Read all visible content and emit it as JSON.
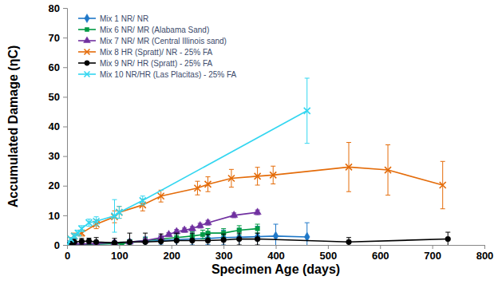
{
  "chart_data": {
    "type": "line",
    "x_label": "Specimen Age (days)",
    "y_label": "Accumulated Damage (ηC)",
    "xlim": [
      0,
      800
    ],
    "ylim": [
      0,
      80
    ],
    "xticks": [
      0,
      100,
      200,
      300,
      400,
      500,
      600,
      700,
      800
    ],
    "yticks": [
      0,
      10,
      20,
      30,
      40,
      50,
      60,
      70,
      80
    ],
    "grid": false,
    "legend": "upper left",
    "series": [
      {
        "name": "Mix 1 NR/ NR",
        "color": "#1F78C8",
        "marker": "diamond",
        "line_style": "solid",
        "x": [
          0,
          7,
          14,
          28,
          56,
          91,
          120,
          150,
          180,
          210,
          240,
          270,
          300,
          330,
          365,
          400,
          460
        ],
        "values": [
          0,
          0.3,
          0.5,
          0.2,
          0.3,
          0.5,
          0.8,
          1.2,
          1.5,
          1.8,
          2.0,
          2.2,
          2.5,
          2.6,
          2.8,
          3.0,
          2.7
        ],
        "errors": [
          0,
          0.3,
          0.5,
          0.5,
          0.5,
          0.8,
          1,
          1.5,
          1.5,
          2,
          2,
          2,
          2.5,
          3,
          3.5,
          4,
          4.8
        ]
      },
      {
        "name": "Mix 6 NR/ MR (Alabama Sand)",
        "color": "#009A44",
        "marker": "square",
        "line_style": "solid",
        "x": [
          0,
          7,
          14,
          28,
          56,
          91,
          105,
          120,
          150,
          180,
          210,
          240,
          260,
          270,
          300,
          330,
          365
        ],
        "values": [
          0,
          0.2,
          0.3,
          0.2,
          0.3,
          0.5,
          0.3,
          1,
          1.5,
          2,
          2.5,
          3,
          3.5,
          4,
          4,
          5,
          5.5
        ],
        "errors": [
          0,
          0.2,
          0.3,
          0.3,
          0.4,
          0.5,
          0.5,
          0.8,
          1,
          1,
          1.2,
          1.5,
          1.5,
          1.5,
          1.5,
          1.5,
          1.5
        ]
      },
      {
        "name": "Mix 7 NR/ MR (Central Illinois sand)",
        "color": "#7030A0",
        "marker": "triangle",
        "line_style": "solid",
        "x": [
          0,
          7,
          14,
          28,
          56,
          91,
          120,
          150,
          180,
          195,
          210,
          225,
          240,
          255,
          270,
          320,
          365
        ],
        "values": [
          0,
          0.3,
          0.5,
          0.3,
          0.5,
          0.8,
          1,
          1.5,
          2.5,
          3.5,
          4.5,
          5,
          5.5,
          6.5,
          7.5,
          10,
          11
        ],
        "errors": [
          0,
          0.2,
          0.3,
          0.3,
          0.4,
          0.5,
          0.5,
          0.6,
          0.6,
          0.6,
          0.7,
          0.7,
          0.7,
          0.8,
          0.8,
          0.8,
          0.8
        ]
      },
      {
        "name": "Mix 8 HR (Spratt)/ NR - 25% FA",
        "color": "#E46C0A",
        "marker": "x",
        "line_style": "solid",
        "x": [
          0,
          7,
          14,
          28,
          56,
          91,
          100,
          145,
          180,
          250,
          270,
          315,
          365,
          395,
          540,
          615,
          720
        ],
        "values": [
          0,
          2,
          3,
          4,
          7,
          9.5,
          11,
          13.5,
          16.5,
          19.2,
          20.5,
          22.5,
          23.2,
          23.6,
          26.3,
          25.3,
          20.2
        ],
        "errors": [
          0,
          0.5,
          1,
          1,
          1.5,
          2,
          2,
          2,
          2,
          2.3,
          2.5,
          3,
          3,
          3,
          8.3,
          8.5,
          8
        ]
      },
      {
        "name": "Mix 9 NR/ HR (Spratt) - 25% FA",
        "color": "#000000",
        "marker": "circle",
        "line_style": "solid",
        "x": [
          0,
          7,
          14,
          28,
          42,
          56,
          91,
          120,
          150,
          180,
          210,
          240,
          270,
          300,
          330,
          365,
          540,
          730
        ],
        "values": [
          0,
          0.5,
          1,
          1.2,
          1.3,
          1,
          0.7,
          1,
          1,
          1.2,
          1.5,
          1.5,
          1.5,
          1.7,
          2,
          2,
          1,
          2
        ],
        "errors": [
          0,
          0.5,
          1,
          1,
          1,
          1.5,
          1.5,
          3,
          3,
          2.5,
          2.5,
          2.5,
          2,
          2,
          2,
          2,
          1.5,
          2.3
        ]
      },
      {
        "name": "Mix 10 NR/HR (Las Placitas) - 25% FA",
        "color": "#33D6F0",
        "marker": "x",
        "line_style": "solid",
        "x": [
          0,
          7,
          14,
          21,
          28,
          42,
          56,
          91,
          100,
          145,
          460
        ],
        "values": [
          0,
          2,
          3,
          4,
          5.5,
          7.5,
          8,
          9.8,
          11,
          15,
          45.3
        ],
        "errors": [
          0,
          0.5,
          0.8,
          1,
          1,
          1.2,
          1.5,
          5.5,
          2,
          1.5,
          11
        ]
      }
    ]
  }
}
